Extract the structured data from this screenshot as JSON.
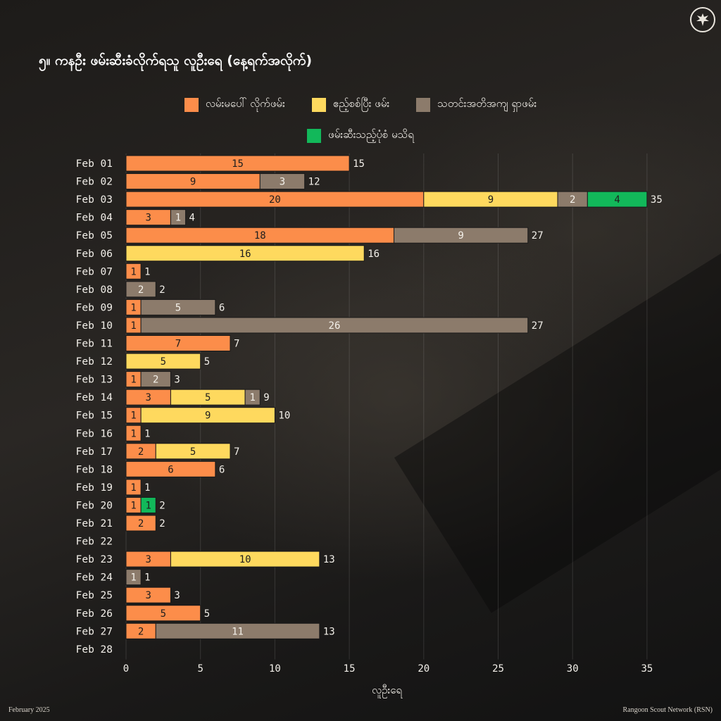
{
  "title": "၅။ ကနဦး ဖမ်းဆီးခံလိုက်ရသူ လူဦးရေ (နေ့ရက်အလိုက်)",
  "footer": {
    "left": "February 2025",
    "right": "Rangoon Scout Network (RSN)"
  },
  "logo": {
    "icon": "bird-emblem-icon"
  },
  "chart_data": {
    "type": "bar",
    "orientation": "horizontal",
    "stacked": true,
    "title": "၅။ ကနဦး ဖမ်းဆီးခံလိုက်ရသူ လူဦးရေ (နေ့ရက်အလိုက်)",
    "xlabel": "လူဦးရေ",
    "ylabel": "",
    "xlim": [
      0,
      36
    ],
    "xticks": [
      0,
      5,
      10,
      15,
      20,
      25,
      30,
      35
    ],
    "grid": true,
    "legend_position": "top",
    "categories": [
      "Feb 01",
      "Feb 02",
      "Feb 03",
      "Feb 04",
      "Feb 05",
      "Feb 06",
      "Feb 07",
      "Feb 08",
      "Feb 09",
      "Feb 10",
      "Feb 11",
      "Feb 12",
      "Feb 13",
      "Feb 14",
      "Feb 15",
      "Feb 16",
      "Feb 17",
      "Feb 18",
      "Feb 19",
      "Feb 20",
      "Feb 21",
      "Feb 22",
      "Feb 23",
      "Feb 24",
      "Feb 25",
      "Feb 26",
      "Feb 27",
      "Feb 28"
    ],
    "series": [
      {
        "name": "လမ်းမပေါ် လိုက်ဖမ်း",
        "color": "#fc8d4a",
        "values": [
          15,
          9,
          20,
          3,
          18,
          0,
          1,
          0,
          1,
          1,
          7,
          0,
          1,
          3,
          1,
          1,
          2,
          6,
          1,
          1,
          2,
          0,
          3,
          0,
          3,
          5,
          2,
          0
        ]
      },
      {
        "name": "ဧည့်စစ်ပြီး ဖမ်း",
        "color": "#fed95e",
        "values": [
          0,
          0,
          9,
          0,
          0,
          16,
          0,
          0,
          0,
          0,
          0,
          5,
          0,
          5,
          9,
          0,
          5,
          0,
          0,
          0,
          0,
          0,
          10,
          0,
          0,
          0,
          0,
          0
        ]
      },
      {
        "name": "သတင်းအတိအကျ ရှာဖမ်း",
        "color": "#8c7b6b",
        "values": [
          0,
          3,
          2,
          1,
          9,
          0,
          0,
          2,
          5,
          26,
          0,
          0,
          2,
          1,
          0,
          0,
          0,
          0,
          0,
          0,
          0,
          0,
          0,
          1,
          0,
          0,
          11,
          0
        ]
      },
      {
        "name": "ဖမ်းဆီးသည့်ပုံစံ မသိရ",
        "color": "#12b85a",
        "values": [
          0,
          0,
          4,
          0,
          0,
          0,
          0,
          0,
          0,
          0,
          0,
          0,
          0,
          0,
          0,
          0,
          0,
          0,
          0,
          1,
          0,
          0,
          0,
          0,
          0,
          0,
          0,
          0
        ]
      }
    ],
    "totals": [
      15,
      12,
      35,
      4,
      27,
      16,
      1,
      2,
      6,
      27,
      7,
      5,
      3,
      9,
      10,
      1,
      7,
      6,
      1,
      2,
      2,
      0,
      13,
      1,
      3,
      5,
      13,
      0
    ]
  }
}
